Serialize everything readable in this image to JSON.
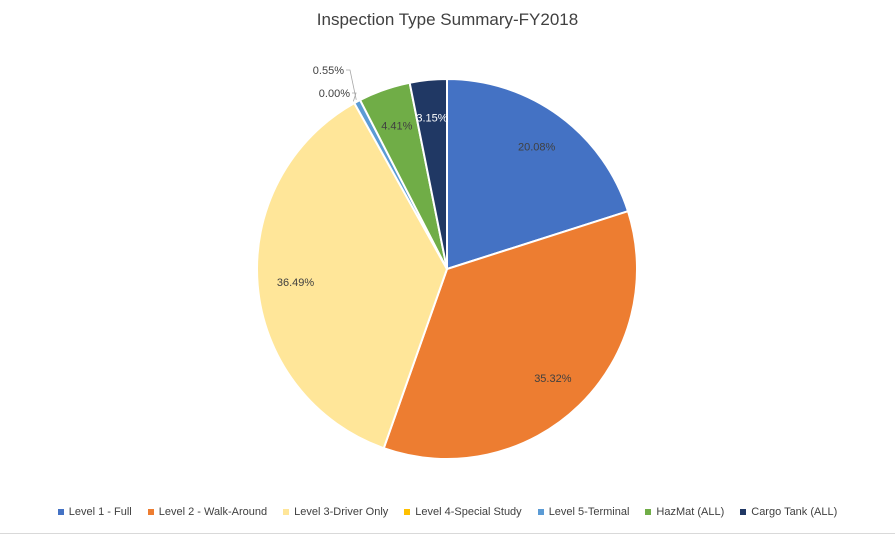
{
  "chart_data": {
    "type": "pie",
    "title": "Inspection Type Summary-FY2018",
    "start_angle_deg": 0,
    "direction": "clockwise",
    "slices": [
      {
        "label": "Level 1 - Full",
        "value": 20.08,
        "display": "20.08%",
        "color": "#4472C4",
        "label_color": "#404040"
      },
      {
        "label": "Level 2 - Walk-Around",
        "value": 35.32,
        "display": "35.32%",
        "color": "#ED7D31",
        "label_color": "#404040"
      },
      {
        "label": "Level 3-Driver Only",
        "value": 36.49,
        "display": "36.49%",
        "color": "#FFE699",
        "label_color": "#404040"
      },
      {
        "label": "Level 4-Special Study",
        "value": 0.0,
        "display": "0.00%",
        "color": "#FFC000",
        "label_color": "#404040"
      },
      {
        "label": "Level 5-Terminal",
        "value": 0.55,
        "display": "0.55%",
        "color": "#5B9BD5",
        "label_color": "#404040"
      },
      {
        "label": "HazMat (ALL)",
        "value": 4.41,
        "display": "4.41%",
        "color": "#70AD47",
        "label_color": "#404040"
      },
      {
        "label": "Cargo Tank (ALL)",
        "value": 3.15,
        "display": "3.15%",
        "color": "#203864",
        "label_color": "#FFFFFF"
      }
    ],
    "legend_position": "bottom"
  }
}
